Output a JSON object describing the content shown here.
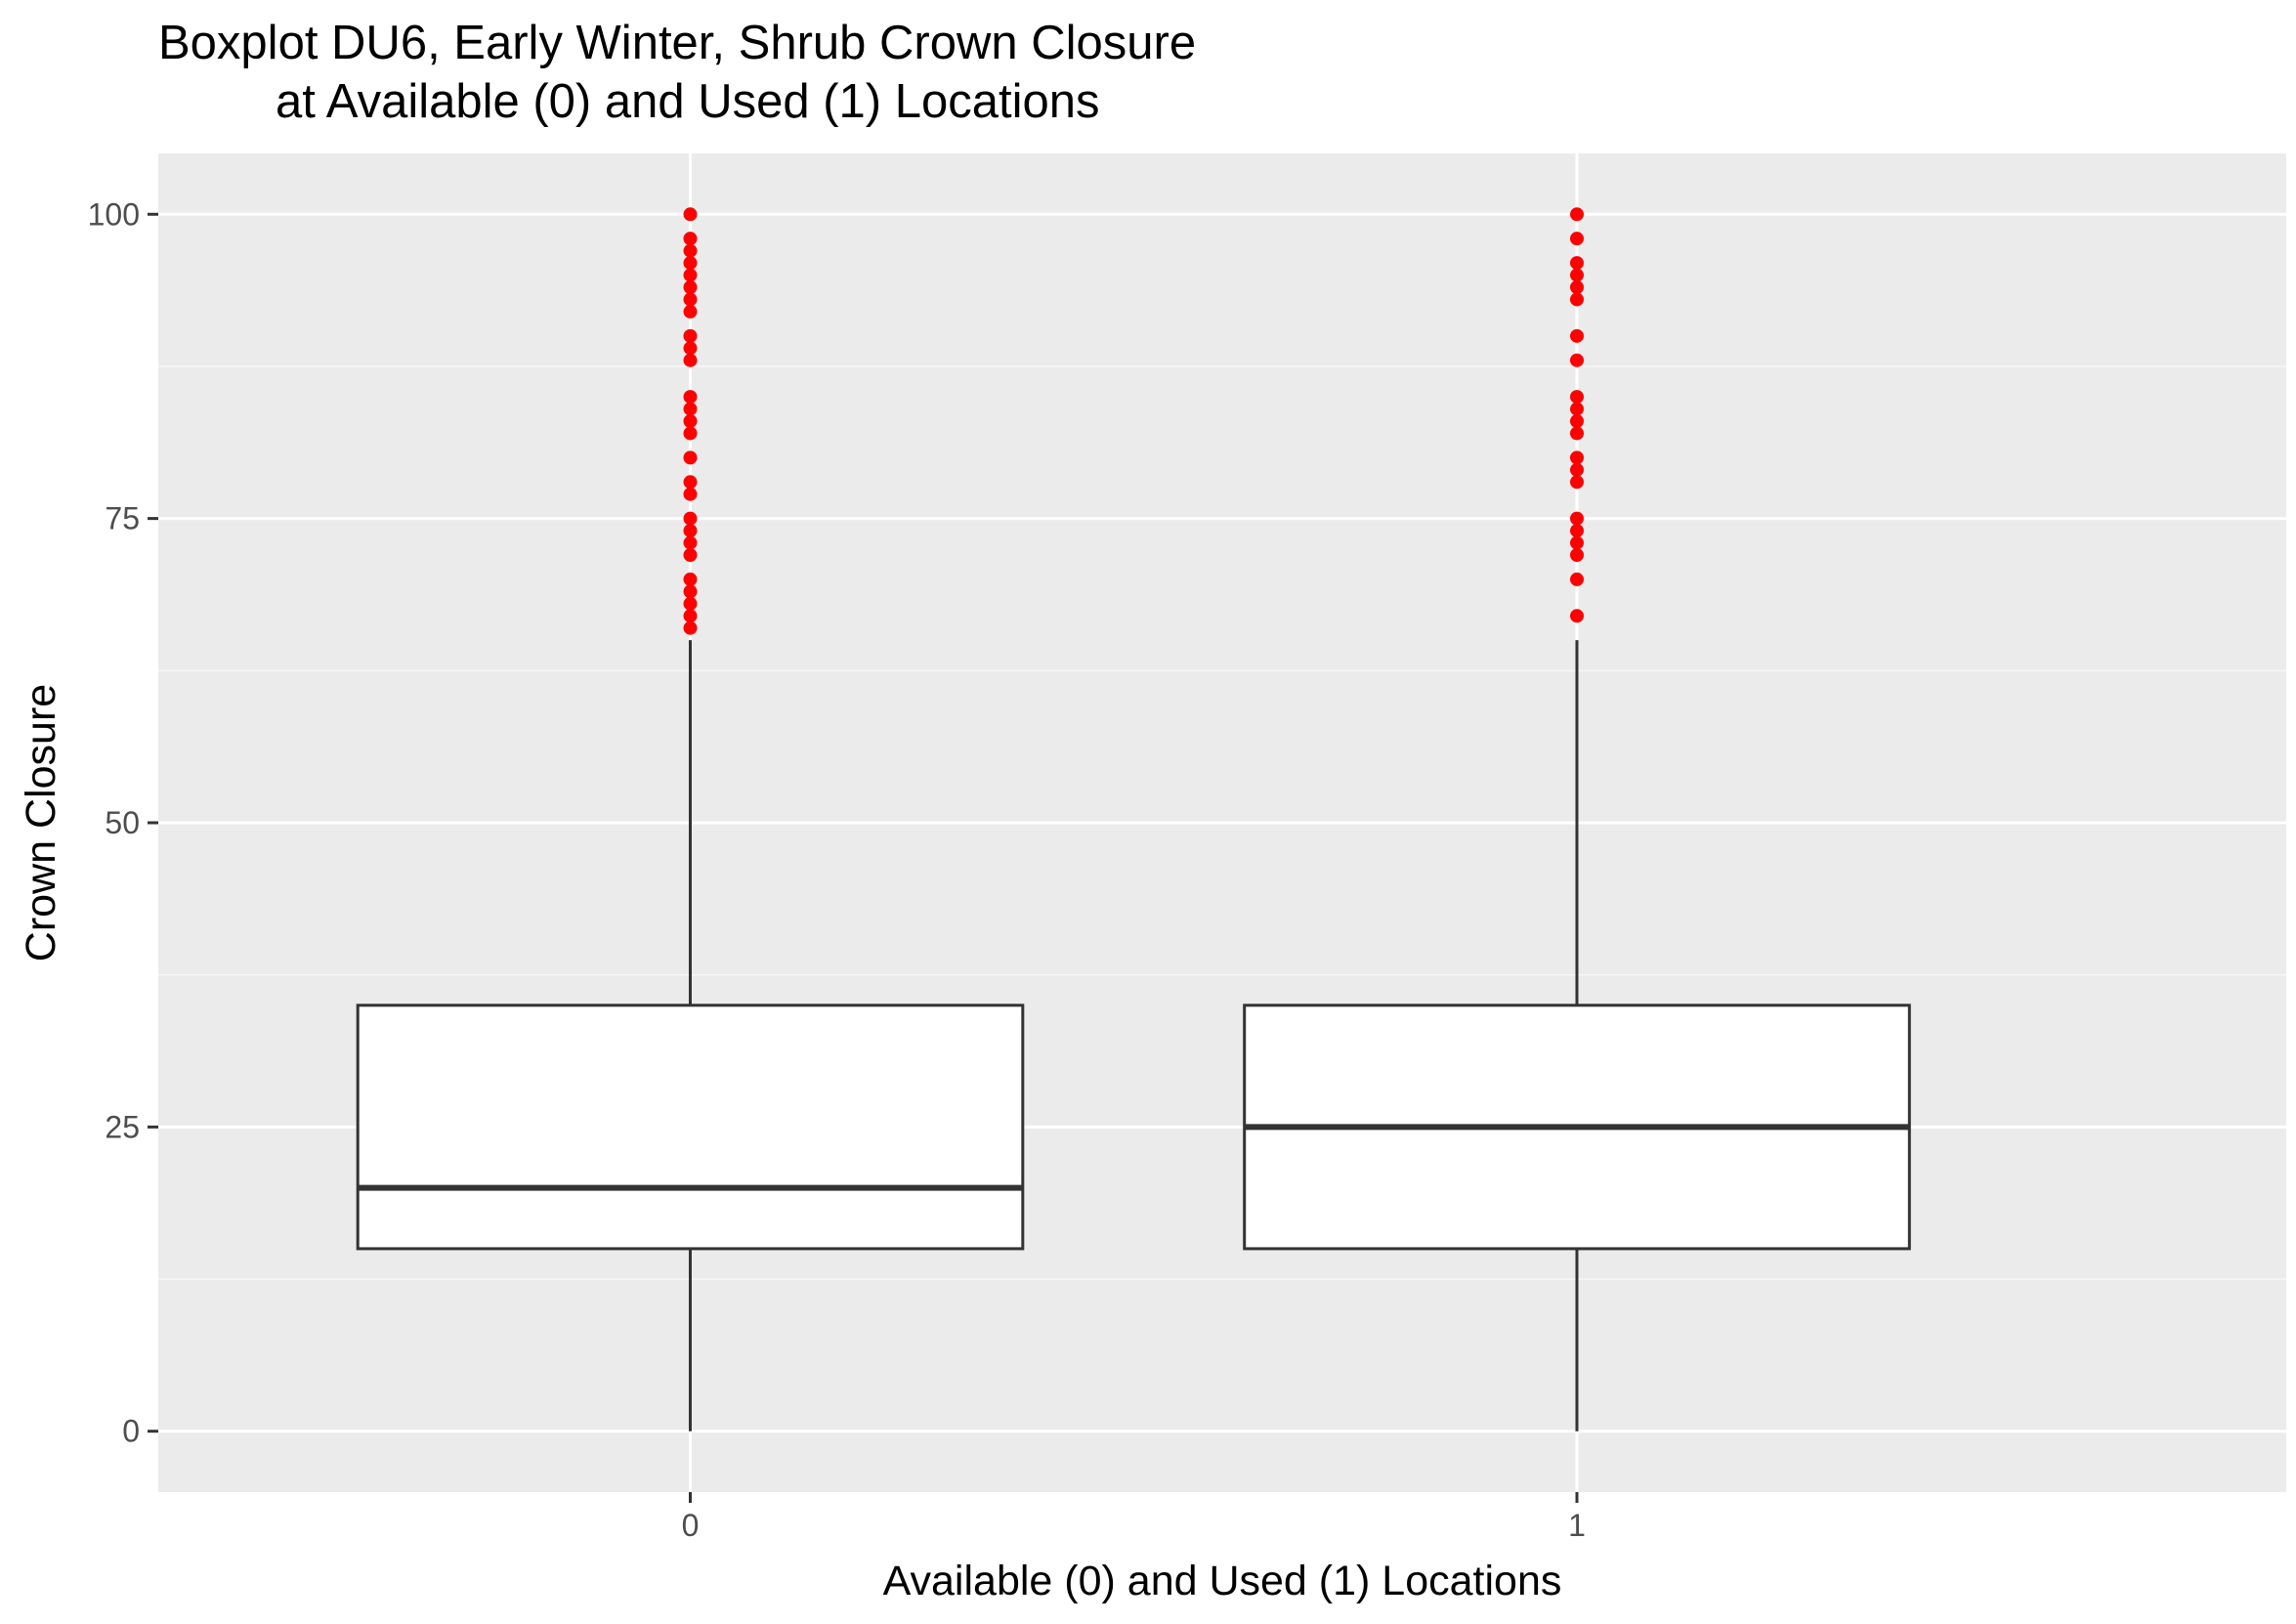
{
  "chart_data": {
    "type": "boxplot",
    "title_lines": [
      "Boxplot DU6, Early Winter, Shrub Crown Closure",
      "at Available (0) and Used (1) Locations"
    ],
    "xlabel": "Available (0) and Used (1) Locations",
    "ylabel": "Crown Closure",
    "categories": [
      "0",
      "1"
    ],
    "ylim": [
      -5,
      105
    ],
    "y_ticks": [
      0,
      25,
      50,
      75,
      100
    ],
    "y_tick_labels": [
      "0",
      "25",
      "50",
      "75",
      "100"
    ],
    "grid": true,
    "legend": "none",
    "boxes": [
      {
        "category": "0",
        "whisker_low": 0,
        "q1": 15,
        "median": 20,
        "q3": 35,
        "whisker_high": 65,
        "outliers": [
          66,
          67,
          68,
          69,
          70,
          72,
          73,
          74,
          75,
          77,
          78,
          80,
          82,
          83,
          84,
          85,
          88,
          89,
          90,
          92,
          93,
          94,
          95,
          96,
          97,
          98,
          100
        ]
      },
      {
        "category": "1",
        "whisker_low": 0,
        "q1": 15,
        "median": 25,
        "q3": 35,
        "whisker_high": 65,
        "outliers": [
          67,
          70,
          72,
          73,
          74,
          75,
          78,
          79,
          80,
          82,
          83,
          84,
          85,
          88,
          90,
          93,
          94,
          95,
          96,
          98,
          100
        ]
      }
    ],
    "colors": {
      "panel_background": "#ebebeb",
      "grid_major": "#ffffff",
      "grid_minor": "#f7f7f7",
      "box_fill": "#ffffff",
      "box_line": "#333333",
      "outlier": "#ff0000",
      "tick_label": "#4d4d4d",
      "tick_mark": "#333333",
      "text": "#000000"
    }
  }
}
